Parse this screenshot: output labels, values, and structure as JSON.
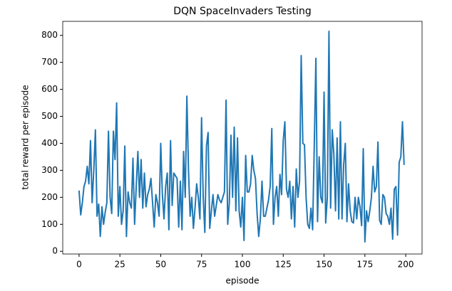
{
  "chart_data": {
    "type": "line",
    "title": "DQN SpaceInvaders Testing",
    "xlabel": "episode",
    "ylabel": "total reward per episode",
    "x": [
      0,
      1,
      2,
      3,
      4,
      5,
      6,
      7,
      8,
      9,
      10,
      11,
      12,
      13,
      14,
      15,
      16,
      17,
      18,
      19,
      20,
      21,
      22,
      23,
      24,
      25,
      26,
      27,
      28,
      29,
      30,
      31,
      32,
      33,
      34,
      35,
      36,
      37,
      38,
      39,
      40,
      41,
      42,
      43,
      44,
      45,
      46,
      47,
      48,
      49,
      50,
      51,
      52,
      53,
      54,
      55,
      56,
      57,
      58,
      59,
      60,
      61,
      62,
      63,
      64,
      65,
      66,
      67,
      68,
      69,
      70,
      71,
      72,
      73,
      74,
      75,
      76,
      77,
      78,
      79,
      80,
      81,
      82,
      83,
      84,
      85,
      86,
      87,
      88,
      89,
      90,
      91,
      92,
      93,
      94,
      95,
      96,
      97,
      98,
      99,
      100,
      101,
      102,
      103,
      104,
      105,
      106,
      107,
      108,
      109,
      110,
      111,
      112,
      113,
      114,
      115,
      116,
      117,
      118,
      119,
      120,
      121,
      122,
      123,
      124,
      125,
      126,
      127,
      128,
      129,
      130,
      131,
      132,
      133,
      134,
      135,
      136,
      137,
      138,
      139,
      140,
      141,
      142,
      143,
      144,
      145,
      146,
      147,
      148,
      149,
      150,
      151,
      152,
      153,
      154,
      155,
      156,
      157,
      158,
      159,
      160,
      161,
      162,
      163,
      164,
      165,
      166,
      167,
      168,
      169,
      170,
      171,
      172,
      173,
      174,
      175,
      176,
      177,
      178,
      179,
      180,
      181,
      182,
      183,
      184,
      185,
      186,
      187,
      188,
      189,
      190,
      191,
      192,
      193,
      194,
      195,
      196,
      197,
      198,
      199
    ],
    "series": [
      {
        "name": "reward",
        "color": "#1f77b4",
        "values": [
          225,
          135,
          180,
          240,
          260,
          315,
          250,
          410,
          180,
          300,
          450,
          130,
          175,
          55,
          165,
          100,
          145,
          180,
          445,
          200,
          140,
          445,
          340,
          550,
          130,
          240,
          100,
          150,
          390,
          55,
          220,
          180,
          160,
          345,
          100,
          240,
          370,
          200,
          340,
          160,
          290,
          165,
          210,
          230,
          270,
          180,
          90,
          210,
          180,
          130,
          400,
          210,
          120,
          240,
          290,
          80,
          410,
          170,
          290,
          280,
          270,
          90,
          260,
          80,
          370,
          200,
          575,
          300,
          130,
          200,
          85,
          160,
          250,
          200,
          120,
          495,
          200,
          70,
          390,
          440,
          85,
          150,
          210,
          130,
          170,
          210,
          190,
          180,
          200,
          220,
          560,
          100,
          180,
          430,
          200,
          460,
          150,
          420,
          150,
          90,
          200,
          40,
          355,
          220,
          220,
          250,
          355,
          300,
          270,
          140,
          55,
          120,
          260,
          130,
          130,
          160,
          190,
          240,
          455,
          100,
          200,
          240,
          130,
          285,
          210,
          410,
          480,
          230,
          200,
          260,
          120,
          240,
          90,
          305,
          200,
          260,
          725,
          400,
          395,
          200,
          100,
          85,
          160,
          80,
          390,
          715,
          110,
          350,
          200,
          180,
          590,
          105,
          200,
          815,
          160,
          450,
          360,
          150,
          420,
          120,
          480,
          120,
          320,
          400,
          110,
          250,
          150,
          110,
          105,
          200,
          120,
          200,
          165,
          95,
          380,
          35,
          150,
          110,
          150,
          200,
          315,
          220,
          240,
          405,
          115,
          100,
          210,
          200,
          140,
          130,
          100,
          160,
          45,
          230,
          240,
          60,
          330,
          350,
          480,
          320
        ]
      }
    ],
    "xlim": [
      -10,
      210
    ],
    "xticks": [
      0,
      25,
      50,
      75,
      100,
      125,
      150,
      175,
      200
    ],
    "ylim": [
      -10,
      852
    ],
    "yticks": [
      0,
      100,
      200,
      300,
      400,
      500,
      600,
      700,
      800
    ]
  }
}
